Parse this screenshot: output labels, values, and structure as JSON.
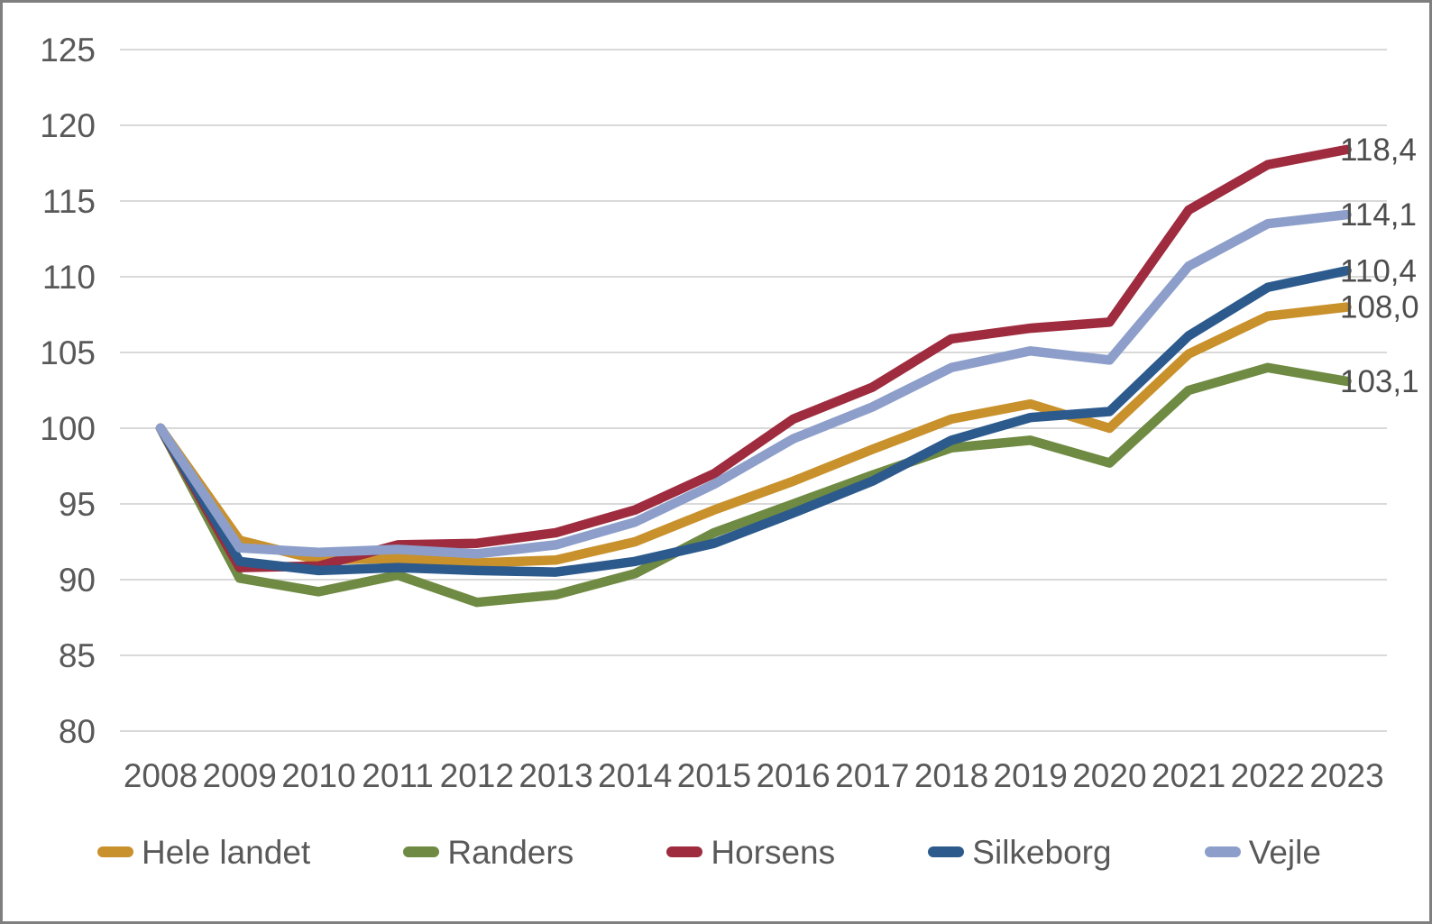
{
  "chart_data": {
    "type": "line",
    "title": "",
    "xlabel": "",
    "ylabel": "",
    "x": [
      "2008",
      "2009",
      "2010",
      "2011",
      "2012",
      "2013",
      "2014",
      "2015",
      "2016",
      "2017",
      "2018",
      "2019",
      "2020",
      "2021",
      "2022",
      "2023"
    ],
    "series": [
      {
        "name": "Hele landet",
        "color": "#C9912C",
        "end_label": "108,0",
        "values": [
          100,
          92.6,
          91.3,
          91.4,
          91.1,
          91.3,
          92.5,
          94.6,
          96.5,
          98.6,
          100.6,
          101.6,
          100.0,
          104.9,
          107.4,
          108.0
        ]
      },
      {
        "name": "Randers",
        "color": "#6F8A42",
        "end_label": "103,1",
        "values": [
          100,
          90.1,
          89.2,
          90.3,
          88.5,
          89.0,
          90.4,
          93.1,
          95.0,
          96.9,
          98.7,
          99.2,
          97.7,
          102.5,
          104.0,
          103.1
        ]
      },
      {
        "name": "Horsens",
        "color": "#9E2B3E",
        "end_label": "118,4",
        "values": [
          100,
          90.8,
          90.9,
          92.3,
          92.4,
          93.1,
          94.6,
          97.0,
          100.6,
          102.7,
          105.9,
          106.6,
          107.0,
          114.4,
          117.4,
          118.4
        ]
      },
      {
        "name": "Silkeborg",
        "color": "#2C5A8C",
        "end_label": "110,4",
        "values": [
          100,
          91.2,
          90.6,
          90.8,
          90.6,
          90.5,
          91.2,
          92.4,
          94.4,
          96.5,
          99.2,
          100.7,
          101.1,
          106.1,
          109.3,
          110.4
        ]
      },
      {
        "name": "Vejle",
        "color": "#8C9EC9",
        "end_label": "114,1",
        "values": [
          100,
          92.1,
          91.8,
          92.0,
          91.7,
          92.3,
          93.8,
          96.3,
          99.3,
          101.4,
          104.0,
          105.1,
          104.5,
          110.7,
          113.5,
          114.1
        ]
      }
    ],
    "ylim": [
      80,
      125
    ],
    "yticks": [
      80,
      85,
      90,
      95,
      100,
      105,
      110,
      115,
      120,
      125
    ],
    "grid": true,
    "gridline_color": "#D9D9D9",
    "axis_label_color": "#595959",
    "end_label_color": "#4D4D4D",
    "border_color": "#7F7F7F",
    "background": "#FFFFFF",
    "legend_position": "bottom"
  },
  "legend": {
    "items": [
      "Hele landet",
      "Randers",
      "Horsens",
      "Silkeborg",
      "Vejle"
    ]
  }
}
